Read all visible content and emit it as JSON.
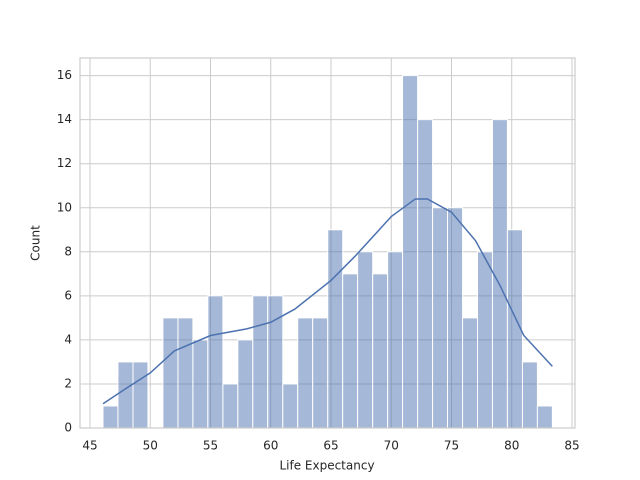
{
  "chart_data": {
    "type": "histogram",
    "xlabel": "Life Expectancy",
    "ylabel": "Count",
    "bins": [
      46.08,
      47.32,
      48.57,
      49.81,
      51.05,
      52.3,
      53.54,
      54.78,
      56.03,
      57.27,
      58.51,
      59.75,
      61.0,
      62.24,
      63.48,
      64.73,
      65.97,
      67.21,
      68.46,
      69.7,
      70.94,
      72.19,
      73.43,
      74.67,
      75.92,
      77.16,
      78.4,
      79.64,
      80.89,
      82.13,
      83.37
    ],
    "counts": [
      1,
      3,
      3,
      0,
      5,
      5,
      4,
      6,
      2,
      4,
      6,
      6,
      2,
      5,
      5,
      9,
      7,
      8,
      7,
      8,
      16,
      14,
      10,
      10,
      5,
      8,
      14,
      9,
      3,
      1
    ],
    "color": "#4c72b0",
    "kde": {
      "x": [
        46.08,
        48,
        50,
        52,
        55,
        58,
        60,
        62,
        65,
        67,
        70,
        72,
        73,
        75,
        77,
        79,
        81,
        83.37
      ],
      "values": [
        1.1,
        1.8,
        2.5,
        3.5,
        4.2,
        4.5,
        4.8,
        5.4,
        6.7,
        7.8,
        9.6,
        10.4,
        10.4,
        9.8,
        8.5,
        6.5,
        4.2,
        2.8
      ]
    },
    "xlim": [
      44.17,
      85.25
    ],
    "ylim": [
      0,
      16.8
    ],
    "xticks": [
      45,
      50,
      55,
      60,
      65,
      70,
      75,
      80,
      85
    ],
    "yticks": [
      0,
      2,
      4,
      6,
      8,
      10,
      12,
      14,
      16
    ],
    "grid": true
  }
}
